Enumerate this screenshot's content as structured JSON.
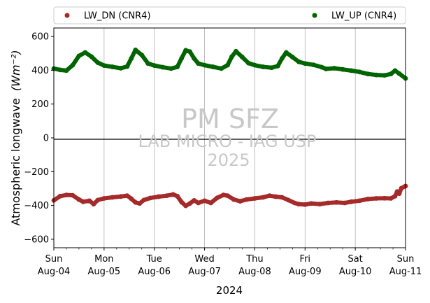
{
  "chart_data": {
    "type": "scatter",
    "title": "",
    "xlabel": "2024",
    "ylabel": "Atmospheric longwave",
    "ylabel_unit": "(Wm⁻²)",
    "ylim": [
      -650,
      650
    ],
    "yticks": [
      -600,
      -400,
      -200,
      0,
      200,
      400,
      600
    ],
    "xlim": [
      "2024-08-04",
      "2024-08-11"
    ],
    "x_ticks": [
      {
        "date": "2024-08-04",
        "day": "Sun",
        "label": "Aug-04"
      },
      {
        "date": "2024-08-05",
        "day": "Mon",
        "label": "Aug-05"
      },
      {
        "date": "2024-08-06",
        "day": "Tue",
        "label": "Aug-06"
      },
      {
        "date": "2024-08-07",
        "day": "Wed",
        "label": "Aug-07"
      },
      {
        "date": "2024-08-08",
        "day": "Thu",
        "label": "Aug-08"
      },
      {
        "date": "2024-08-09",
        "day": "Fri",
        "label": "Aug-09"
      },
      {
        "date": "2024-08-10",
        "day": "Sat",
        "label": "Aug-10"
      },
      {
        "date": "2024-08-11",
        "day": "Sun",
        "label": "Aug-11"
      }
    ],
    "grid": "vertical",
    "zero_line": true,
    "legend_position": "top",
    "watermark": [
      "PM SFZ",
      "LAB MICRO - IAG USP",
      "2025"
    ],
    "series": [
      {
        "name": "LW_DN (CNR4)",
        "color": "#a52a2a",
        "points": [
          [
            "2024-08-04 00:00",
            -370
          ],
          [
            "2024-08-04 03:00",
            -345
          ],
          [
            "2024-08-04 06:00",
            -338
          ],
          [
            "2024-08-04 09:00",
            -340
          ],
          [
            "2024-08-04 12:00",
            -365
          ],
          [
            "2024-08-04 14:00",
            -378
          ],
          [
            "2024-08-04 17:00",
            -372
          ],
          [
            "2024-08-04 19:00",
            -392
          ],
          [
            "2024-08-04 21:00",
            -368
          ],
          [
            "2024-08-05 00:00",
            -358
          ],
          [
            "2024-08-05 04:00",
            -352
          ],
          [
            "2024-08-05 08:00",
            -347
          ],
          [
            "2024-08-05 11:00",
            -342
          ],
          [
            "2024-08-05 13:00",
            -360
          ],
          [
            "2024-08-05 15:00",
            -382
          ],
          [
            "2024-08-05 17:00",
            -388
          ],
          [
            "2024-08-05 19:00",
            -368
          ],
          [
            "2024-08-05 22:00",
            -356
          ],
          [
            "2024-08-06 02:00",
            -348
          ],
          [
            "2024-08-06 06:00",
            -342
          ],
          [
            "2024-08-06 09:00",
            -335
          ],
          [
            "2024-08-06 11:00",
            -345
          ],
          [
            "2024-08-06 13:00",
            -380
          ],
          [
            "2024-08-06 15:00",
            -402
          ],
          [
            "2024-08-06 17:00",
            -388
          ],
          [
            "2024-08-06 19:00",
            -370
          ],
          [
            "2024-08-06 21:00",
            -385
          ],
          [
            "2024-08-07 00:00",
            -372
          ],
          [
            "2024-08-07 03:00",
            -385
          ],
          [
            "2024-08-07 06:00",
            -355
          ],
          [
            "2024-08-07 09:00",
            -338
          ],
          [
            "2024-08-07 11:00",
            -342
          ],
          [
            "2024-08-07 14:00",
            -365
          ],
          [
            "2024-08-07 17:00",
            -375
          ],
          [
            "2024-08-07 20:00",
            -365
          ],
          [
            "2024-08-08 00:00",
            -358
          ],
          [
            "2024-08-08 04:00",
            -352
          ],
          [
            "2024-08-08 07:00",
            -342
          ],
          [
            "2024-08-08 10:00",
            -348
          ],
          [
            "2024-08-08 13:00",
            -352
          ],
          [
            "2024-08-08 16:00",
            -368
          ],
          [
            "2024-08-08 19:00",
            -385
          ],
          [
            "2024-08-08 21:00",
            -392
          ],
          [
            "2024-08-09 00:00",
            -395
          ],
          [
            "2024-08-09 03:00",
            -388
          ],
          [
            "2024-08-09 07:00",
            -392
          ],
          [
            "2024-08-09 11:00",
            -385
          ],
          [
            "2024-08-09 15:00",
            -382
          ],
          [
            "2024-08-09 19:00",
            -385
          ],
          [
            "2024-08-09 22:00",
            -378
          ],
          [
            "2024-08-10 02:00",
            -372
          ],
          [
            "2024-08-10 06:00",
            -362
          ],
          [
            "2024-08-10 10:00",
            -358
          ],
          [
            "2024-08-10 14:00",
            -357
          ],
          [
            "2024-08-10 17:00",
            -358
          ],
          [
            "2024-08-10 19:00",
            -345
          ],
          [
            "2024-08-10 20:00",
            -318
          ],
          [
            "2024-08-10 21:00",
            -330
          ],
          [
            "2024-08-10 22:00",
            -298
          ],
          [
            "2024-08-11 00:00",
            -285
          ]
        ]
      },
      {
        "name": "LW_UP (CNR4)",
        "color": "#006400",
        "points": [
          [
            "2024-08-04 00:00",
            410
          ],
          [
            "2024-08-04 03:00",
            402
          ],
          [
            "2024-08-04 06:00",
            398
          ],
          [
            "2024-08-04 09:00",
            430
          ],
          [
            "2024-08-04 12:00",
            485
          ],
          [
            "2024-08-04 15:00",
            505
          ],
          [
            "2024-08-04 18:00",
            480
          ],
          [
            "2024-08-04 21:00",
            445
          ],
          [
            "2024-08-05 00:00",
            428
          ],
          [
            "2024-08-05 04:00",
            420
          ],
          [
            "2024-08-05 08:00",
            412
          ],
          [
            "2024-08-05 11:00",
            422
          ],
          [
            "2024-08-05 13:00",
            470
          ],
          [
            "2024-08-05 15:00",
            520
          ],
          [
            "2024-08-05 18:00",
            490
          ],
          [
            "2024-08-05 21:00",
            440
          ],
          [
            "2024-08-06 00:00",
            428
          ],
          [
            "2024-08-06 04:00",
            418
          ],
          [
            "2024-08-06 08:00",
            410
          ],
          [
            "2024-08-06 11:00",
            420
          ],
          [
            "2024-08-06 13:00",
            470
          ],
          [
            "2024-08-06 15:00",
            518
          ],
          [
            "2024-08-06 17:00",
            510
          ],
          [
            "2024-08-06 19:00",
            470
          ],
          [
            "2024-08-06 21:00",
            440
          ],
          [
            "2024-08-07 00:00",
            430
          ],
          [
            "2024-08-07 04:00",
            420
          ],
          [
            "2024-08-07 08:00",
            410
          ],
          [
            "2024-08-07 11:00",
            430
          ],
          [
            "2024-08-07 13:00",
            480
          ],
          [
            "2024-08-07 15:00",
            512
          ],
          [
            "2024-08-07 18:00",
            478
          ],
          [
            "2024-08-07 21:00",
            442
          ],
          [
            "2024-08-08 00:00",
            430
          ],
          [
            "2024-08-08 04:00",
            420
          ],
          [
            "2024-08-08 08:00",
            415
          ],
          [
            "2024-08-08 11:00",
            425
          ],
          [
            "2024-08-08 13:00",
            470
          ],
          [
            "2024-08-08 15:00",
            505
          ],
          [
            "2024-08-08 18:00",
            478
          ],
          [
            "2024-08-08 21:00",
            450
          ],
          [
            "2024-08-09 00:00",
            440
          ],
          [
            "2024-08-09 04:00",
            432
          ],
          [
            "2024-08-09 08:00",
            418
          ],
          [
            "2024-08-09 10:00",
            408
          ],
          [
            "2024-08-09 14:00",
            412
          ],
          [
            "2024-08-09 18:00",
            405
          ],
          [
            "2024-08-09 22:00",
            398
          ],
          [
            "2024-08-10 02:00",
            390
          ],
          [
            "2024-08-10 06:00",
            378
          ],
          [
            "2024-08-10 10:00",
            372
          ],
          [
            "2024-08-10 14:00",
            370
          ],
          [
            "2024-08-10 17:00",
            378
          ],
          [
            "2024-08-10 19:00",
            398
          ],
          [
            "2024-08-10 21:00",
            380
          ],
          [
            "2024-08-11 00:00",
            352
          ]
        ]
      }
    ]
  }
}
